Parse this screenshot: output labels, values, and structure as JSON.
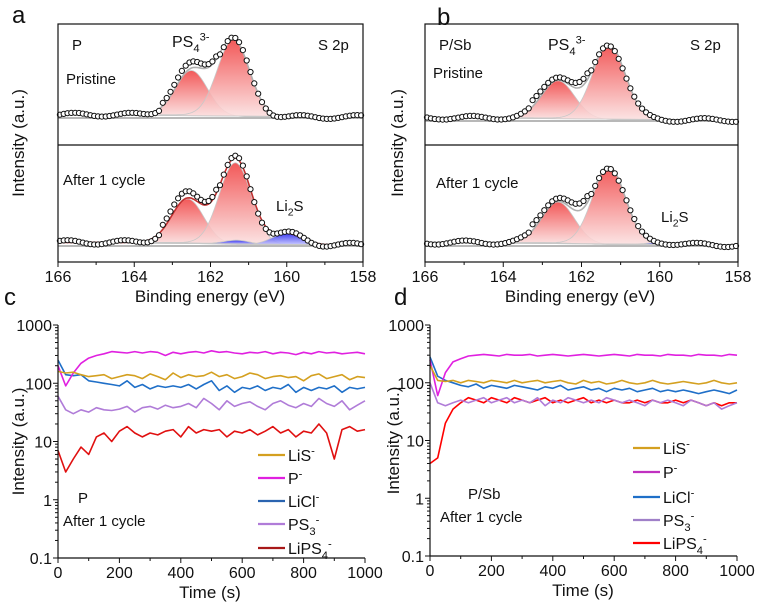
{
  "chart_data": [
    {
      "type": "line",
      "panel_label": "a",
      "sample": "P",
      "region": "S 2p",
      "xlabel": "Binding energy (eV)",
      "ylabel": "Intensity (a.u.)",
      "xlim": [
        166,
        158
      ],
      "x_ticks": [
        "166",
        "164",
        "162",
        "160",
        "158"
      ],
      "annotation_ps4": {
        "base": "PS",
        "sub": "4",
        "sup": "3-"
      },
      "annotation_li2s": {
        "base": "Li",
        "sub": "2",
        "tail": "S"
      },
      "subplots": [
        {
          "condition": "Pristine",
          "fit_color": "#b0b0b0",
          "components": [
            {
              "center": 162.5,
              "height": 0.58,
              "sigma": 0.42,
              "color": "#f03c3c"
            },
            {
              "center": 161.4,
              "height": 1.0,
              "sigma": 0.42,
              "color": "#f03c3c"
            }
          ]
        },
        {
          "condition": "After 1 cycle",
          "fit_color": "#c03030",
          "components": [
            {
              "center": 162.6,
              "height": 0.5,
              "sigma": 0.42,
              "color": "#f03c3c"
            },
            {
              "center": 161.35,
              "height": 0.93,
              "sigma": 0.42,
              "color": "#f03c3c"
            },
            {
              "center": 161.3,
              "height": 0.05,
              "sigma": 0.35,
              "color": "#2a2af0"
            },
            {
              "center": 160.0,
              "height": 0.13,
              "sigma": 0.4,
              "color": "#2a2af0"
            }
          ]
        }
      ]
    },
    {
      "type": "line",
      "panel_label": "b",
      "sample": "P/Sb",
      "region": "S 2p",
      "xlabel": "Binding energy (eV)",
      "ylabel": "Intensity (a.u.)",
      "xlim": [
        166,
        158
      ],
      "x_ticks": [
        "166",
        "164",
        "162",
        "160",
        "158"
      ],
      "annotation_ps4": {
        "base": "PS",
        "sub": "4",
        "sup": "3-"
      },
      "annotation_li2s": {
        "base": "Li",
        "sub": "2",
        "tail": "S"
      },
      "subplots": [
        {
          "condition": "Pristine",
          "fit_color": "#b0b0b0",
          "components": [
            {
              "center": 162.6,
              "height": 0.5,
              "sigma": 0.42,
              "color": "#f03c3c"
            },
            {
              "center": 161.3,
              "height": 1.0,
              "sigma": 0.42,
              "color": "#f03c3c"
            }
          ]
        },
        {
          "condition": "After 1 cycle",
          "fit_color": "#b0b0b0",
          "components": [
            {
              "center": 162.6,
              "height": 0.5,
              "sigma": 0.42,
              "color": "#f03c3c"
            },
            {
              "center": 161.3,
              "height": 0.95,
              "sigma": 0.42,
              "color": "#f03c3c"
            },
            {
              "center": 160.0,
              "height": 0.03,
              "sigma": 0.4,
              "color": "#2a2af0"
            }
          ]
        }
      ]
    },
    {
      "type": "line",
      "panel_label": "c",
      "sample": "P",
      "condition": "After 1 cycle",
      "xlabel": "Time (s)",
      "ylabel": "Intensity (a.u.)",
      "xlim": [
        0,
        1000
      ],
      "ylim": [
        0.1,
        1000
      ],
      "y_scale": "log",
      "x_ticks": [
        "0",
        "200",
        "400",
        "600",
        "800",
        "1000"
      ],
      "y_ticks": [
        "1000",
        "100",
        "10",
        "1",
        "0.1"
      ],
      "legend_position": "bottom-right",
      "x": [
        0,
        25,
        50,
        75,
        100,
        125,
        150,
        175,
        200,
        225,
        250,
        275,
        300,
        325,
        350,
        375,
        400,
        425,
        450,
        475,
        500,
        525,
        550,
        575,
        600,
        625,
        650,
        675,
        700,
        725,
        750,
        775,
        800,
        825,
        850,
        875,
        900,
        925,
        950,
        975,
        1000
      ],
      "series": [
        {
          "label": {
            "base": "LiS",
            "sup": "-"
          },
          "color": "#d4a020",
          "legend_color": "#d4a020",
          "values": [
            160,
            150,
            155,
            140,
            130,
            135,
            140,
            120,
            130,
            140,
            135,
            120,
            145,
            130,
            115,
            150,
            125,
            140,
            130,
            135,
            155,
            130,
            140,
            120,
            130,
            150,
            140,
            120,
            130,
            135,
            125,
            130,
            110,
            135,
            145,
            120,
            130,
            140,
            115,
            130,
            125
          ]
        },
        {
          "label": {
            "base": "P",
            "sup": "-"
          },
          "color": "#e020e0",
          "legend_color": "#e020e0",
          "values": [
            200,
            90,
            150,
            220,
            270,
            300,
            320,
            350,
            340,
            330,
            350,
            330,
            350,
            340,
            300,
            340,
            320,
            340,
            350,
            330,
            360,
            340,
            350,
            330,
            320,
            340,
            330,
            350,
            320,
            340,
            330,
            310,
            340,
            320,
            350,
            330,
            340,
            320,
            330,
            340,
            320
          ]
        },
        {
          "label": {
            "base": "LiCl",
            "sup": "-"
          },
          "color": "#1f6fc8",
          "legend_color": "#2a64b0",
          "values": [
            250,
            140,
            135,
            140,
            110,
            105,
            100,
            95,
            90,
            110,
            85,
            95,
            80,
            90,
            85,
            90,
            85,
            95,
            80,
            95,
            110,
            75,
            90,
            70,
            85,
            80,
            90,
            75,
            85,
            80,
            95,
            70,
            85,
            75,
            85,
            80,
            90,
            70,
            85,
            80,
            85
          ]
        },
        {
          "label": {
            "base": "PS",
            "sub": "3",
            "sup": "-"
          },
          "color": "#b07cd8",
          "legend_color": "#b07cd8",
          "values": [
            60,
            35,
            30,
            35,
            32,
            38,
            35,
            34,
            36,
            40,
            32,
            38,
            40,
            36,
            42,
            38,
            40,
            45,
            38,
            55,
            45,
            35,
            50,
            40,
            45,
            48,
            40,
            35,
            45,
            50,
            42,
            38,
            45,
            40,
            55,
            45,
            40,
            50,
            35,
            42,
            50
          ]
        },
        {
          "label": {
            "base": "LiPS",
            "sub": "4",
            "sup": "-"
          },
          "color": "#e01010",
          "legend_color": "#a81818",
          "values": [
            7,
            3,
            5,
            8,
            6,
            12,
            14,
            10,
            15,
            18,
            14,
            12,
            14,
            13,
            15,
            16,
            12,
            18,
            14,
            16,
            15,
            16,
            12,
            15,
            14,
            16,
            13,
            15,
            18,
            14,
            16,
            12,
            15,
            14,
            20,
            14,
            5,
            16,
            18,
            15,
            16
          ]
        }
      ]
    },
    {
      "type": "line",
      "panel_label": "d",
      "sample": "P/Sb",
      "condition": "After 1 cycle",
      "xlabel": "Time (s)",
      "ylabel": "Intensity (a.u.)",
      "xlim": [
        0,
        1000
      ],
      "ylim": [
        0.1,
        1000
      ],
      "y_scale": "log",
      "x_ticks": [
        "0",
        "200",
        "400",
        "600",
        "800",
        "1000"
      ],
      "y_ticks": [
        "1000",
        "100",
        "10",
        "1",
        "0.1"
      ],
      "legend_position": "bottom-right",
      "x": [
        0,
        25,
        50,
        75,
        100,
        125,
        150,
        175,
        200,
        225,
        250,
        275,
        300,
        325,
        350,
        375,
        400,
        425,
        450,
        475,
        500,
        525,
        550,
        575,
        600,
        625,
        650,
        675,
        700,
        725,
        750,
        775,
        800,
        825,
        850,
        875,
        900,
        925,
        950,
        975,
        1000
      ],
      "series": [
        {
          "label": {
            "base": "LiS",
            "sup": "-"
          },
          "color": "#d4a020",
          "legend_color": "#d4a020",
          "values": [
            200,
            110,
            105,
            110,
            100,
            110,
            105,
            100,
            110,
            105,
            100,
            110,
            100,
            105,
            110,
            100,
            105,
            110,
            100,
            95,
            110,
            100,
            105,
            95,
            100,
            110,
            100,
            95,
            100,
            110,
            100,
            95,
            100,
            105,
            100,
            95,
            100,
            110,
            100,
            95,
            100
          ]
        },
        {
          "label": {
            "base": "P",
            "sup": "-"
          },
          "color": "#e020e0",
          "legend_color": "#c030c0",
          "values": [
            250,
            60,
            150,
            230,
            260,
            290,
            300,
            310,
            300,
            290,
            310,
            300,
            300,
            310,
            290,
            300,
            310,
            300,
            290,
            300,
            310,
            300,
            290,
            300,
            310,
            300,
            290,
            310,
            300,
            300,
            290,
            310,
            300,
            300,
            290,
            310,
            300,
            300,
            290,
            310,
            300
          ]
        },
        {
          "label": {
            "base": "LiCl",
            "sup": "-"
          },
          "color": "#1f6fc8",
          "legend_color": "#1f6fc8",
          "values": [
            280,
            130,
            110,
            100,
            90,
            85,
            95,
            80,
            90,
            85,
            80,
            90,
            85,
            80,
            75,
            85,
            80,
            90,
            75,
            80,
            85,
            75,
            80,
            70,
            80,
            75,
            80,
            70,
            75,
            80,
            70,
            75,
            70,
            75,
            70,
            65,
            70,
            75,
            70,
            65,
            75
          ]
        },
        {
          "label": {
            "base": "PS",
            "sub": "3",
            "sup": "-"
          },
          "color": "#b07cd8",
          "legend_color": "#a080c8",
          "values": [
            100,
            45,
            40,
            45,
            50,
            45,
            50,
            55,
            45,
            50,
            55,
            45,
            50,
            45,
            55,
            40,
            50,
            45,
            55,
            50,
            45,
            50,
            45,
            55,
            50,
            45,
            50,
            45,
            40,
            50,
            45,
            50,
            45,
            40,
            50,
            45,
            40,
            45,
            35,
            40,
            45
          ]
        },
        {
          "label": {
            "base": "LiPS",
            "sub": "4",
            "sup": "-"
          },
          "color": "#ff0000",
          "legend_color": "#ff0000",
          "values": [
            4,
            5,
            20,
            35,
            45,
            55,
            50,
            45,
            55,
            50,
            45,
            55,
            50,
            45,
            50,
            55,
            45,
            50,
            45,
            50,
            55,
            45,
            50,
            45,
            50,
            45,
            45,
            50,
            45,
            50,
            45,
            45,
            50,
            45,
            50,
            45,
            40,
            45,
            40,
            45,
            45
          ]
        }
      ]
    }
  ]
}
